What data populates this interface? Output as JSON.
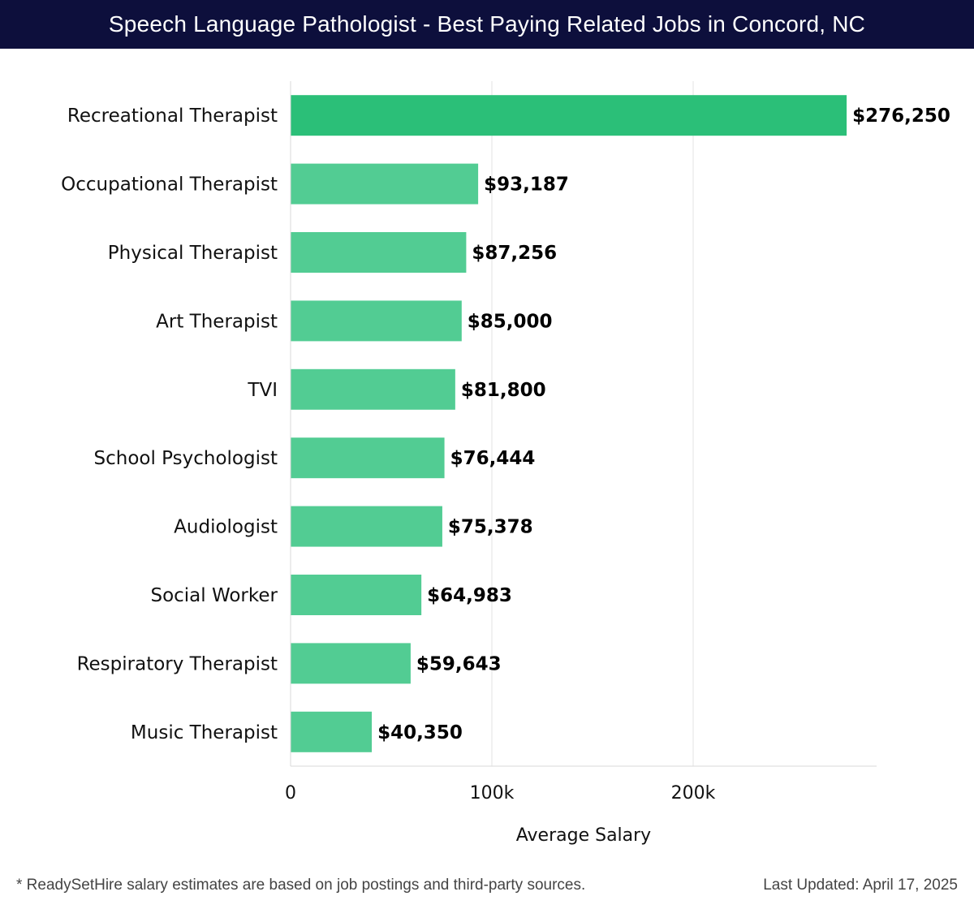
{
  "header": {
    "title": "Speech Language Pathologist - Best Paying Related Jobs in Concord, NC"
  },
  "colors": {
    "header_bg": "#0d0f3c",
    "top_bar": "#2bbf78",
    "bar": "#52cc93",
    "grid": "#e3e3e3"
  },
  "chart_data": {
    "type": "bar",
    "orientation": "horizontal",
    "categories": [
      "Recreational Therapist",
      "Occupational Therapist",
      "Physical Therapist",
      "Art Therapist",
      "TVI",
      "School Psychologist",
      "Audiologist",
      "Social Worker",
      "Respiratory Therapist",
      "Music Therapist"
    ],
    "values": [
      276250,
      93187,
      87256,
      85000,
      81800,
      76444,
      75378,
      64983,
      59643,
      40350
    ],
    "value_labels": [
      "$276,250",
      "$93,187",
      "$87,256",
      "$85,000",
      "$81,800",
      "$76,444",
      "$75,378",
      "$64,983",
      "$59,643",
      "$40,350"
    ],
    "xlabel": "Average Salary",
    "ylabel": "",
    "xlim": [
      0,
      290000
    ],
    "xticks": [
      0,
      100000,
      200000
    ],
    "xtick_labels": [
      "0",
      "100k",
      "200k"
    ],
    "grid": true
  },
  "footer": {
    "note": "* ReadySetHire salary estimates are based on job postings and third-party sources.",
    "updated": "Last Updated: April 17, 2025"
  }
}
